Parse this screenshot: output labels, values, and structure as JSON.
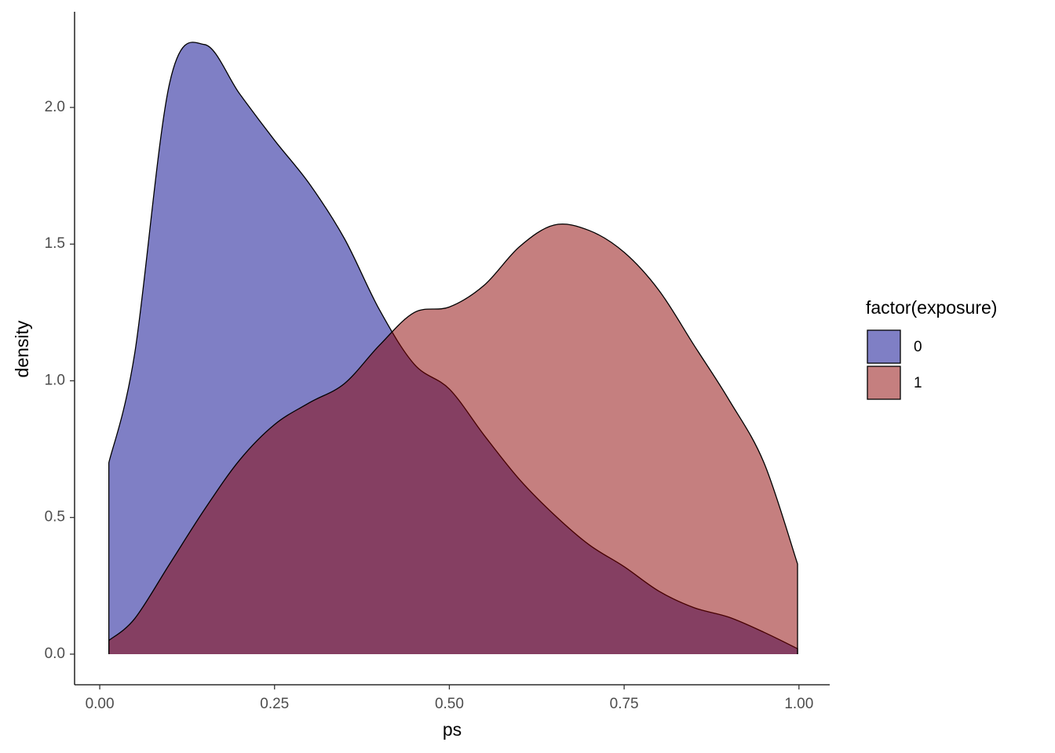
{
  "chart_data": {
    "type": "area",
    "x_label": "ps",
    "y_label": "density",
    "x": [
      0.013,
      0.05,
      0.1,
      0.15,
      0.2,
      0.25,
      0.3,
      0.35,
      0.4,
      0.45,
      0.5,
      0.55,
      0.6,
      0.65,
      0.7,
      0.75,
      0.8,
      0.85,
      0.9,
      0.95,
      0.998
    ],
    "series": [
      {
        "name": "0",
        "color": "#00008B",
        "values": [
          0.7,
          1.1,
          2.09,
          2.23,
          2.05,
          1.88,
          1.72,
          1.52,
          1.26,
          1.06,
          0.97,
          0.8,
          0.64,
          0.51,
          0.4,
          0.32,
          0.23,
          0.17,
          0.135,
          0.08,
          0.02
        ]
      },
      {
        "name": "1",
        "color": "#8B0000",
        "values": [
          0.05,
          0.13,
          0.33,
          0.53,
          0.71,
          0.84,
          0.92,
          0.99,
          1.13,
          1.25,
          1.27,
          1.35,
          1.49,
          1.57,
          1.55,
          1.47,
          1.33,
          1.13,
          0.93,
          0.7,
          0.33
        ]
      }
    ],
    "fill_opacity": 0.5,
    "legend_title": "factor(exposure)",
    "legend": "right",
    "xlim": [
      -0.036,
      1.044
    ],
    "xticks": [
      {
        "value": 0,
        "label": "0.00"
      },
      {
        "value": 0.25,
        "label": "0.25"
      },
      {
        "value": 0.5,
        "label": "0.50"
      },
      {
        "value": 0.75,
        "label": "0.75"
      },
      {
        "value": 1,
        "label": "1.00"
      }
    ],
    "ylim": [
      -0.112,
      2.35
    ],
    "yticks": [
      {
        "value": 0,
        "label": "0.0"
      },
      {
        "value": 0.5,
        "label": "0.5"
      },
      {
        "value": 1,
        "label": "1.0"
      },
      {
        "value": 1.5,
        "label": "1.5"
      },
      {
        "value": 2,
        "label": "2.0"
      }
    ],
    "grid": false
  }
}
